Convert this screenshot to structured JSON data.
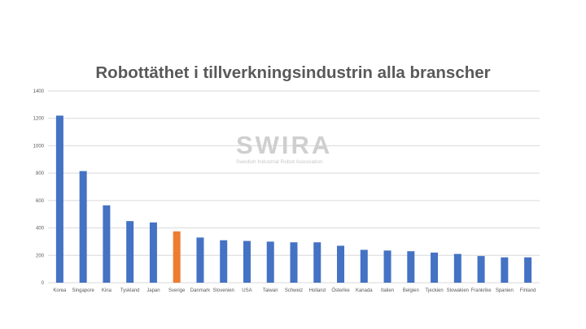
{
  "chart_data": {
    "type": "bar",
    "title": "Robottäthet i tillverkningsindustrin alla branscher",
    "xlabel": "",
    "ylabel": "",
    "ylim": [
      0,
      1400
    ],
    "yticks": [
      0,
      200,
      400,
      600,
      800,
      1000,
      1200,
      1400
    ],
    "grid": true,
    "categories": [
      "Korea",
      "Singapore",
      "Kina",
      "Tyskland",
      "Japan",
      "Sverige",
      "Danmark",
      "Slovenien",
      "USA",
      "Taiwan",
      "Schweiz",
      "Holland",
      "Österike",
      "Kanada",
      "Italien",
      "Belgien",
      "Tjeckien",
      "Slowakien",
      "Frankrike",
      "Spanien",
      "Finland"
    ],
    "values": [
      1220,
      815,
      565,
      450,
      440,
      375,
      330,
      310,
      305,
      300,
      295,
      295,
      270,
      240,
      235,
      230,
      220,
      210,
      195,
      185,
      185
    ],
    "highlight_category": "Sverige",
    "colors": {
      "bar": "#4472c4",
      "highlight": "#ed7d31",
      "grid": "#d9d9d9",
      "text": "#595959"
    }
  },
  "watermark": {
    "logo": "SWIRA",
    "subtitle": "Swedish Industrial Robot Association"
  }
}
